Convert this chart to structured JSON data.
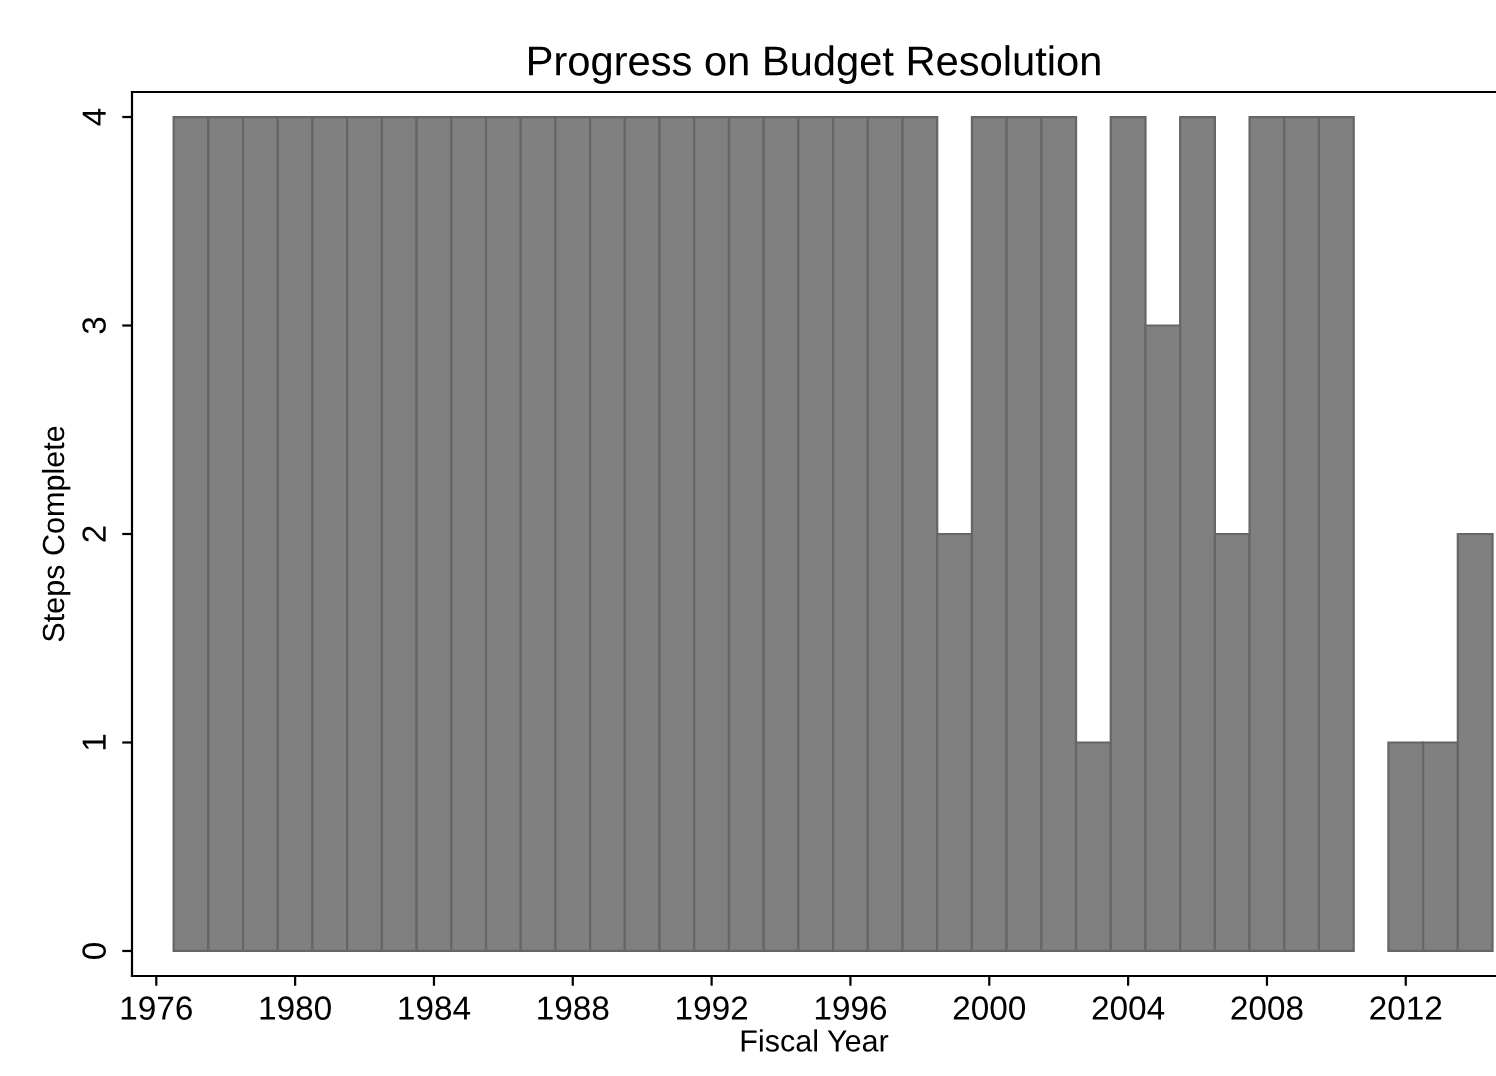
{
  "chart_data": {
    "type": "bar",
    "title": "Progress on Budget Resolution",
    "xlabel": "Fiscal Year",
    "ylabel": "Steps Complete",
    "x": [
      1977,
      1978,
      1979,
      1980,
      1981,
      1982,
      1983,
      1984,
      1985,
      1986,
      1987,
      1988,
      1989,
      1990,
      1991,
      1992,
      1993,
      1994,
      1995,
      1996,
      1997,
      1998,
      1999,
      2000,
      2001,
      2002,
      2003,
      2004,
      2005,
      2006,
      2007,
      2008,
      2009,
      2010,
      2011,
      2012,
      2013,
      2014
    ],
    "values": [
      4,
      4,
      4,
      4,
      4,
      4,
      4,
      4,
      4,
      4,
      4,
      4,
      4,
      4,
      4,
      4,
      4,
      4,
      4,
      4,
      4,
      4,
      2,
      4,
      4,
      4,
      1,
      4,
      3,
      4,
      2,
      4,
      4,
      4,
      null,
      1,
      1,
      2
    ],
    "color": "#808080",
    "xlim": [
      1975.3,
      2014.6
    ],
    "xticks": [
      1976,
      1980,
      1984,
      1988,
      1992,
      1996,
      2000,
      2004,
      2008,
      2012
    ],
    "ylim": [
      -0.12,
      4.12
    ],
    "yticks": [
      0,
      1,
      2,
      3,
      4
    ],
    "grid": false,
    "legend": false
  }
}
